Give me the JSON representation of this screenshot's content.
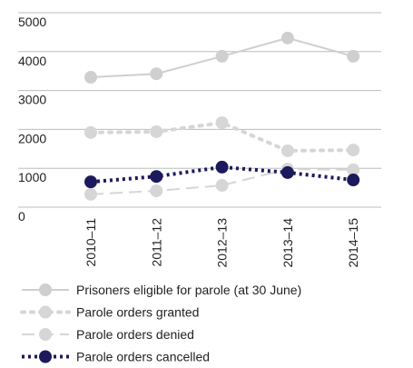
{
  "chart_data": {
    "type": "line",
    "categories": [
      "2010–11",
      "2011–12",
      "2012–13",
      "2013–14",
      "2014–15"
    ],
    "series": [
      {
        "name": "Prisoners eligible for parole (at 30 June)",
        "color": "#cfcfcf",
        "line_style": "solid",
        "values": [
          3340,
          3430,
          3880,
          4350,
          3880
        ]
      },
      {
        "name": "Parole orders granted",
        "color": "#d6d6d6",
        "line_style": "dotted",
        "values": [
          1920,
          1940,
          2170,
          1450,
          1470
        ]
      },
      {
        "name": "Parole orders denied",
        "color": "#d6d6d6",
        "line_style": "dashed",
        "values": [
          330,
          420,
          560,
          980,
          960
        ]
      },
      {
        "name": "Parole orders cancelled",
        "color": "#1c1a5c",
        "line_style": "dotted",
        "values": [
          650,
          790,
          1030,
          890,
          700
        ]
      }
    ],
    "ylim": [
      0,
      5000
    ],
    "yticks": [
      0,
      1000,
      2000,
      3000,
      4000,
      5000
    ],
    "grid": true
  }
}
